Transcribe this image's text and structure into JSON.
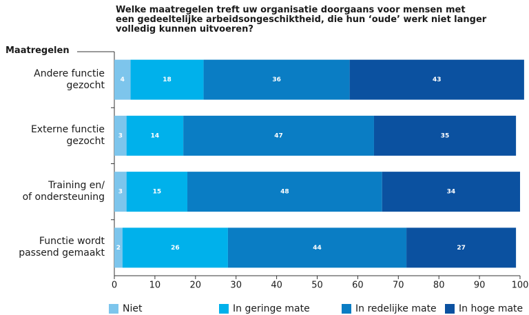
{
  "chart_data": {
    "type": "stacked_barh",
    "title": "Welke maatregelen treft uw organisatie doorgaans voor mensen met\neen gedeeltelijke arbeidsongeschiktheid, die hun ‘oude’ werk niet langer\nvolledig kunnen uitvoeren?",
    "y_label": "Maatregelen",
    "categories": [
      "Andere functie\ngezocht",
      "Externe functie\ngezocht",
      "Training en/\nof ondersteuning",
      "Functie wordt\npassend gemaakt"
    ],
    "series": [
      {
        "name": "Niet",
        "color": "#7dc5ec",
        "values": [
          4,
          3,
          3,
          2
        ]
      },
      {
        "name": "In geringe mate",
        "color": "#00b1eb",
        "values": [
          18,
          14,
          15,
          26
        ]
      },
      {
        "name": "In redelijke mate",
        "color": "#0a7dc4",
        "values": [
          36,
          47,
          48,
          44
        ]
      },
      {
        "name": "In hoge mate",
        "color": "#0b51a0",
        "values": [
          43,
          35,
          34,
          27
        ]
      }
    ],
    "xlim": [
      0,
      100
    ],
    "xticks": [
      0,
      10,
      20,
      30,
      40,
      50,
      60,
      70,
      80,
      90,
      100
    ],
    "legend": "bottom"
  }
}
